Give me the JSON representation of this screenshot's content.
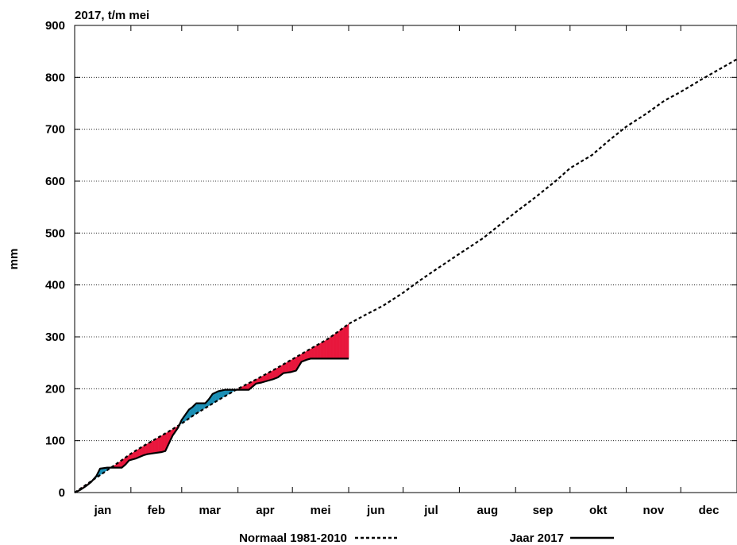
{
  "chart_data": {
    "type": "line",
    "title": "2017, t/m mei",
    "ylabel": "mm",
    "xlabel": "",
    "ylim": [
      0,
      900
    ],
    "yticks": [
      0,
      100,
      200,
      300,
      400,
      500,
      600,
      700,
      800,
      900
    ],
    "xlim": [
      0,
      365
    ],
    "months": [
      "jan",
      "feb",
      "mar",
      "apr",
      "mei",
      "jun",
      "jul",
      "aug",
      "sep",
      "okt",
      "nov",
      "dec"
    ],
    "month_starts": [
      0,
      31,
      59,
      90,
      120,
      151,
      181,
      212,
      243,
      273,
      304,
      334,
      365
    ],
    "grid": "horizontal dotted",
    "legend_position": "bottom-center",
    "colors": {
      "above_normal": "#1a8fb5",
      "below_normal": "#e8163c",
      "line": "#000000"
    },
    "series": [
      {
        "name": "Normaal 1981-2010",
        "style": "dashed",
        "x": [
          0,
          5,
          10,
          15,
          20,
          25,
          31,
          38,
          45,
          52,
          59,
          66,
          73,
          80,
          90,
          100,
          110,
          120,
          130,
          140,
          151,
          160,
          170,
          181,
          190,
          200,
          212,
          225,
          235,
          243,
          255,
          265,
          273,
          285,
          295,
          304,
          315,
          325,
          334,
          345,
          355,
          365
        ],
        "y": [
          0,
          12,
          24,
          36,
          48,
          60,
          75,
          90,
          104,
          118,
          133,
          150,
          165,
          180,
          200,
          218,
          237,
          257,
          277,
          297,
          325,
          342,
          360,
          385,
          408,
          432,
          460,
          490,
          518,
          540,
          572,
          600,
          625,
          650,
          680,
          705,
          730,
          755,
          772,
          795,
          815,
          835
        ]
      },
      {
        "name": "Jaar 2017",
        "style": "solid",
        "x": [
          0,
          3,
          6,
          9,
          12,
          14,
          18,
          22,
          26,
          28,
          30,
          34,
          38,
          40,
          44,
          48,
          50,
          52,
          54,
          55,
          57,
          59,
          61,
          63,
          65,
          67,
          70,
          72,
          74,
          76,
          79,
          83,
          87,
          91,
          96,
          100,
          103,
          106,
          109,
          112,
          115,
          119,
          122,
          125,
          128,
          130,
          133,
          136,
          139,
          142,
          151
        ],
        "y": [
          0,
          5,
          12,
          20,
          32,
          46,
          48,
          48,
          48,
          54,
          62,
          66,
          72,
          74,
          76,
          78,
          80,
          95,
          110,
          115,
          125,
          140,
          150,
          160,
          165,
          172,
          172,
          172,
          180,
          190,
          195,
          198,
          198,
          198,
          198,
          210,
          212,
          215,
          218,
          222,
          230,
          232,
          235,
          252,
          256,
          258,
          258,
          258,
          258,
          258,
          258
        ]
      }
    ]
  }
}
